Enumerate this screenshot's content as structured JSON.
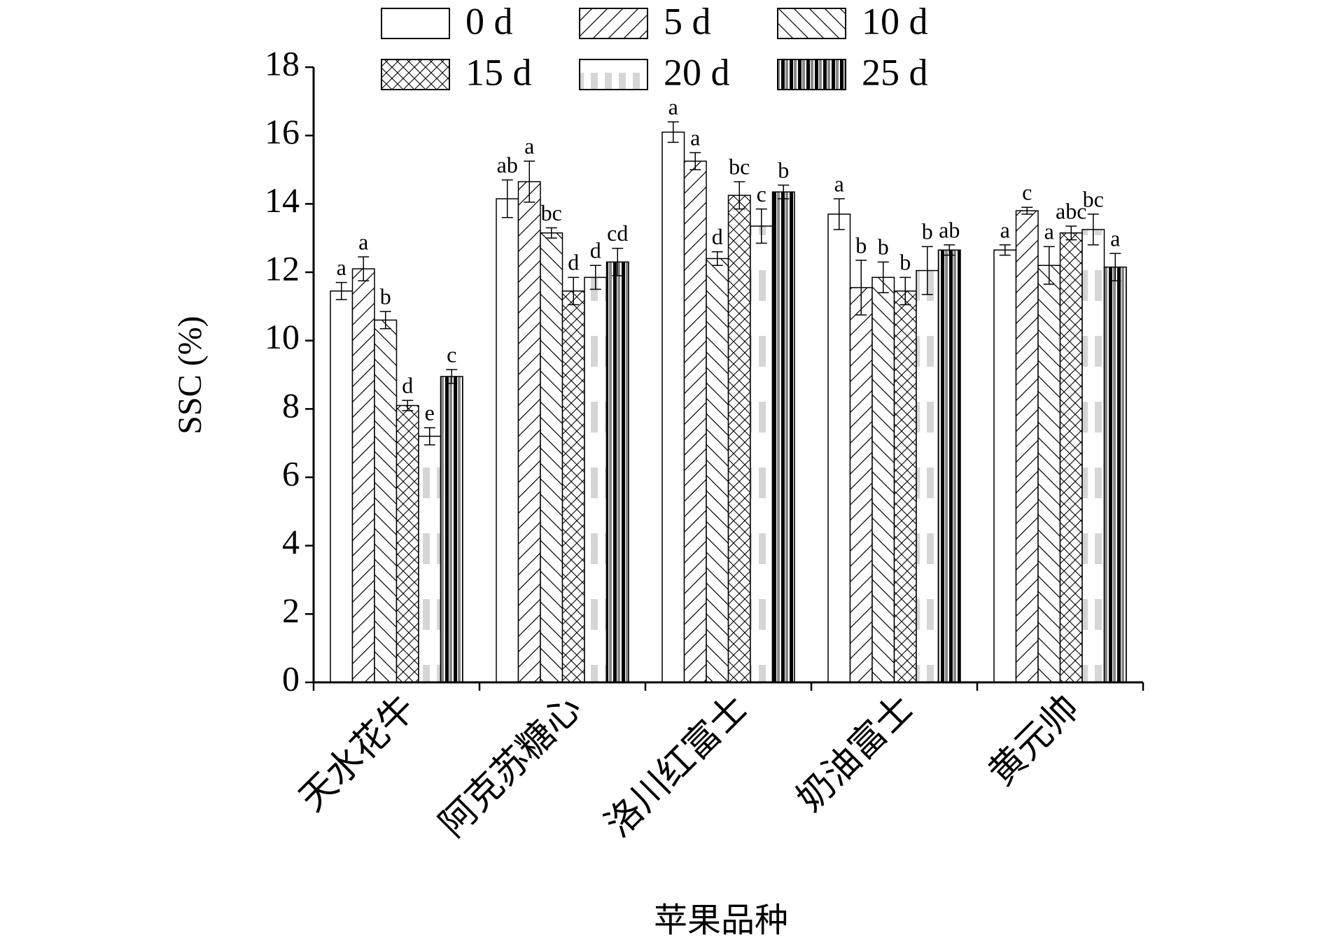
{
  "chart_data": {
    "type": "bar",
    "y_label": "SSC (%)",
    "x_label": "苹果品种",
    "categories": [
      "天水花牛",
      "阿克苏糖心",
      "洛川红富士",
      "奶油富士",
      "黄元帅"
    ],
    "ylim": [
      0,
      18
    ],
    "yticks": [
      0,
      2,
      4,
      6,
      8,
      10,
      12,
      14,
      16,
      18
    ],
    "series": [
      {
        "name": "0 d",
        "color": "#ffffff",
        "pattern": "none",
        "values": [
          11.45,
          14.15,
          16.1,
          13.7,
          12.65
        ],
        "errors": [
          0.25,
          0.55,
          0.3,
          0.45,
          0.15
        ],
        "letters": [
          "a",
          "ab",
          "a",
          "a",
          "a"
        ]
      },
      {
        "name": "5 d",
        "color": "#ffffff",
        "pattern": "forward",
        "values": [
          12.1,
          14.65,
          15.25,
          11.55,
          13.8
        ],
        "errors": [
          0.35,
          0.6,
          0.25,
          0.8,
          0.1
        ],
        "letters": [
          "a",
          "a",
          "a",
          "b",
          "c"
        ]
      },
      {
        "name": "10 d",
        "color": "#ffffff",
        "pattern": "backward",
        "values": [
          10.6,
          13.15,
          12.4,
          11.85,
          12.2
        ],
        "errors": [
          0.25,
          0.15,
          0.2,
          0.45,
          0.55
        ],
        "letters": [
          "b",
          "bc",
          "d",
          "b",
          "a"
        ]
      },
      {
        "name": "15 d",
        "color": "#ffffff",
        "pattern": "cross",
        "values": [
          8.1,
          11.45,
          14.25,
          11.45,
          13.15
        ],
        "errors": [
          0.15,
          0.4,
          0.4,
          0.4,
          0.2
        ],
        "letters": [
          "d",
          "d",
          "bc",
          "b",
          "abc"
        ]
      },
      {
        "name": "20 d",
        "color": "#ffffff",
        "pattern": "dots",
        "values": [
          7.2,
          11.85,
          13.35,
          12.05,
          13.25
        ],
        "errors": [
          0.25,
          0.35,
          0.5,
          0.7,
          0.45
        ],
        "letters": [
          "e",
          "d",
          "c",
          "b",
          "bc"
        ]
      },
      {
        "name": "25 d",
        "color": "#ffffff",
        "pattern": "stripes",
        "values": [
          8.95,
          12.3,
          14.35,
          12.65,
          12.15
        ],
        "errors": [
          0.2,
          0.4,
          0.2,
          0.15,
          0.4
        ],
        "letters": [
          "c",
          "cd",
          "b",
          "ab",
          "a"
        ]
      }
    ]
  }
}
